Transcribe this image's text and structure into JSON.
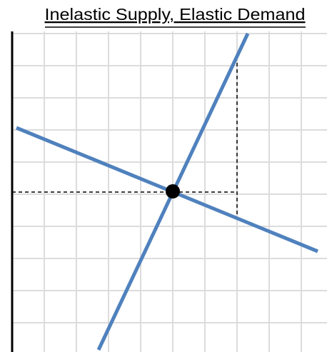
{
  "title": "Inelastic Supply, Elastic Demand"
}
